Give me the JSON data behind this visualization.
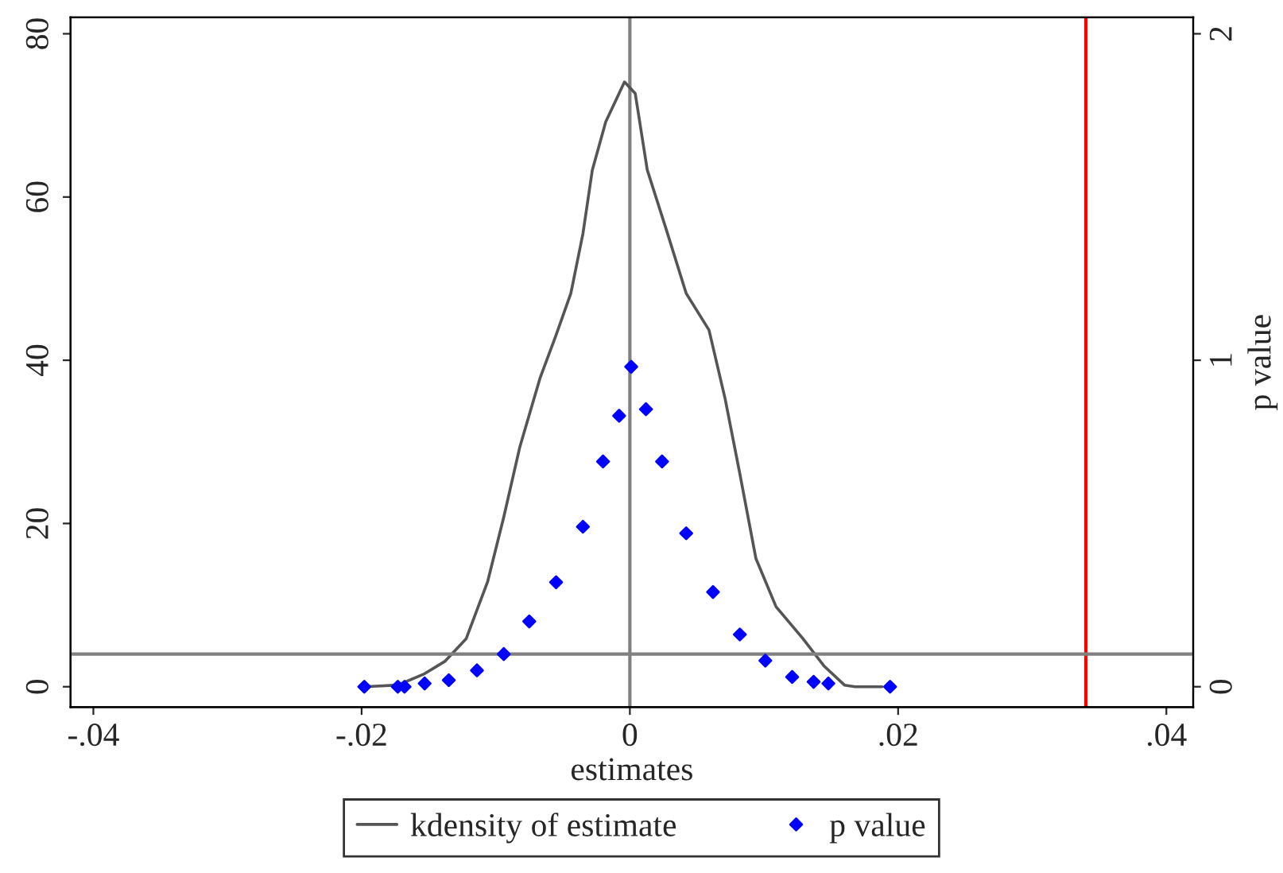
{
  "chart_data": {
    "type": "line",
    "xlabel": "estimates",
    "y2label": "p value",
    "xlim": [
      -0.0417,
      0.042
    ],
    "xticks": [
      {
        "value": -0.04,
        "label": "-.04"
      },
      {
        "value": -0.02,
        "label": "-.02"
      },
      0,
      {
        "value": 0.02,
        "label": ".02"
      },
      {
        "value": 0.04,
        "label": ".04"
      }
    ],
    "ylim": [
      -2.5,
      82
    ],
    "yticks": [
      0,
      20,
      40,
      60,
      80
    ],
    "y2lim": [
      -0.0625,
      2.05
    ],
    "y2ticks": [
      0,
      1,
      2
    ],
    "series": [
      {
        "name": "kdensity of estimate",
        "color": "#555555",
        "line_style": "solid",
        "marker": "none",
        "x": [
          -0.0198,
          -0.0173,
          -0.0153,
          -0.0138,
          -0.0122,
          -0.0106,
          -0.0094,
          -0.0082,
          -0.0067,
          -0.0055,
          -0.0044,
          -0.0035,
          -0.0028,
          -0.0018,
          -0.0004,
          0.0004,
          0.0013,
          0.0027,
          0.0042,
          0.0059,
          0.0071,
          0.0082,
          0.0094,
          0.0109,
          0.0129,
          0.0145,
          0.016,
          0.0168,
          0.0188
        ],
        "values": [
          0,
          0.2,
          1.6,
          3.1,
          5.9,
          12.9,
          20.8,
          29.4,
          37.8,
          43.1,
          48.2,
          55.5,
          63.3,
          69.2,
          74.1,
          72.7,
          63.3,
          56.1,
          48.2,
          43.7,
          35.3,
          26.1,
          15.7,
          9.8,
          5.9,
          2.5,
          0.2,
          0,
          0
        ]
      },
      {
        "name": "p value",
        "type": "scatter",
        "axis": "y2",
        "color": "#0000ff",
        "marker": "diamond",
        "x": [
          -0.0198,
          -0.0173,
          -0.0168,
          -0.0153,
          -0.0135,
          -0.0114,
          -0.0094,
          -0.0075,
          -0.0055,
          -0.0035,
          -0.002,
          -0.0008,
          0.0001,
          0.0012,
          0.0024,
          0.0042,
          0.0062,
          0.0082,
          0.0101,
          0.0121,
          0.0137,
          0.0148,
          0.0194
        ],
        "values": [
          0,
          0,
          0,
          0.01,
          0.02,
          0.05,
          0.1,
          0.2,
          0.32,
          0.49,
          0.69,
          0.83,
          0.98,
          0.85,
          0.69,
          0.47,
          0.29,
          0.16,
          0.08,
          0.03,
          0.015,
          0.01,
          0
        ]
      }
    ],
    "ref_lines": [
      {
        "axis": "x",
        "value": 0,
        "color": "#808080"
      },
      {
        "axis": "x",
        "value": 0.034,
        "color": "#ff0000"
      },
      {
        "axis": "y2",
        "value": 0.1,
        "color": "#808080"
      }
    ],
    "grid": false,
    "legend": "bottom"
  }
}
